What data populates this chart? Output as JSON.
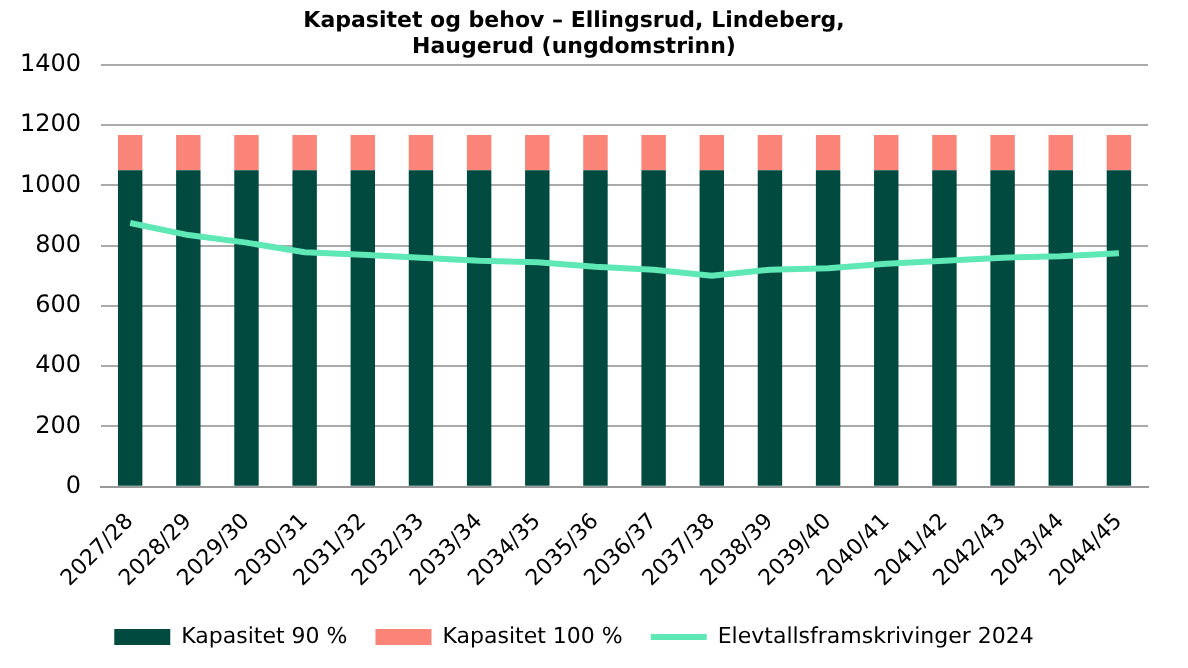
{
  "chart_data": {
    "type": "bar",
    "title": "Kapasitet og behov – Ellingsrud, Lindeberg, Haugerud (ungdomstrinn)",
    "categories": [
      "2027/28",
      "2028/29",
      "2029/30",
      "2030/31",
      "2031/32",
      "2032/33",
      "2033/34",
      "2034/35",
      "2035/36",
      "2036/37",
      "2037/38",
      "2038/39",
      "2039/40",
      "2040/41",
      "2041/42",
      "2042/43",
      "2043/44",
      "2044/45"
    ],
    "stacked": true,
    "ylim": [
      0,
      1400
    ],
    "yticks": [
      0,
      200,
      400,
      600,
      800,
      1000,
      1200,
      1400
    ],
    "grid": "y",
    "legend": "bottom",
    "marker": "none",
    "series": [
      {
        "name": "Kapasitet 90 %",
        "color": "#004a3f",
        "values": [
          1050,
          1050,
          1050,
          1050,
          1050,
          1050,
          1050,
          1050,
          1050,
          1050,
          1050,
          1050,
          1050,
          1050,
          1050,
          1050,
          1050,
          1050
        ]
      },
      {
        "name": "Kapasitet 100 %",
        "color": "#f98477",
        "values": [
          117,
          117,
          117,
          117,
          117,
          117,
          117,
          117,
          117,
          117,
          117,
          117,
          117,
          117,
          117,
          117,
          117,
          117
        ]
      },
      {
        "name": "Elevtallsframskrivinger 2024",
        "type": "line",
        "color": "#5ee8b5",
        "values": [
          875,
          835,
          810,
          778,
          770,
          760,
          750,
          745,
          730,
          720,
          700,
          720,
          725,
          740,
          750,
          760,
          765,
          775
        ]
      }
    ]
  }
}
